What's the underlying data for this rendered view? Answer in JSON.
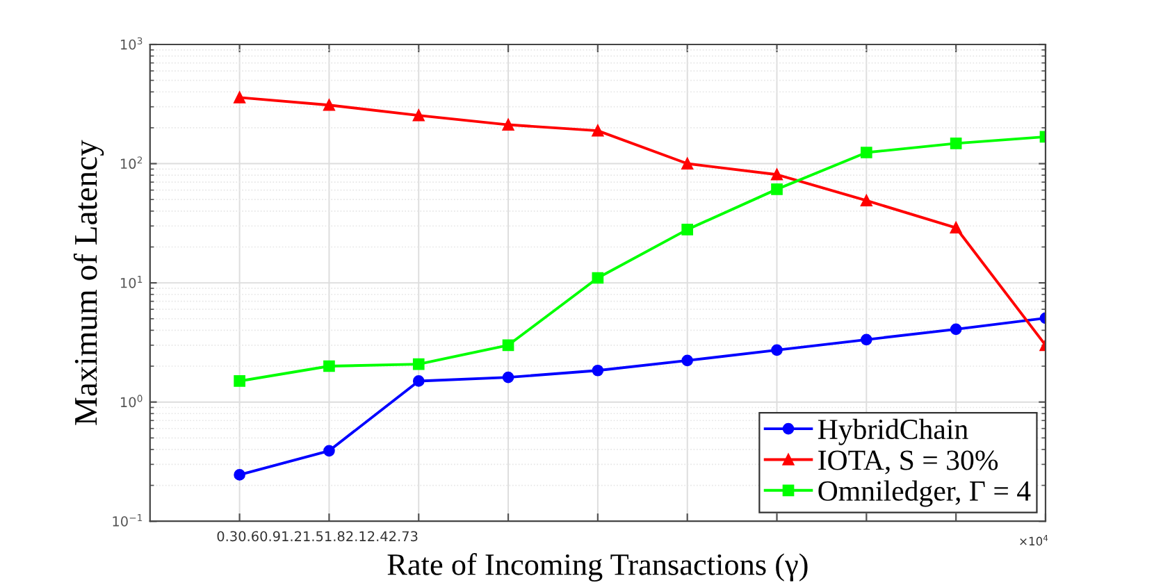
{
  "chart_data": {
    "type": "line",
    "xlabel": "Rate of Incoming Transactions (γ)",
    "ylabel": "Maximum of Latency",
    "categories": [
      null,
      null,
      null,
      null,
      null,
      null,
      null,
      null,
      null,
      null
    ],
    "ylim": [
      0.1,
      1000
    ],
    "log": "y",
    "yticks": [
      {
        "value": 0.1,
        "label": "10$^{−1}$"
      },
      {
        "value": 1,
        "label": "10$^{0}$"
      },
      {
        "value": 10,
        "label": "10$^{1}$"
      },
      {
        "value": 100,
        "label": "10$^{2}$"
      },
      {
        "value": 1000,
        "label": "10$^{3}$"
      }
    ],
    "series": [
      {
        "name": "HybridChain",
        "color": "#0000ff",
        "marker": "circle",
        "values": [
          0.245,
          0.39,
          1.5,
          1.61,
          1.84,
          2.23,
          2.73,
          3.34,
          4.08,
          5.06
        ]
      },
      {
        "name": "IOTA, S = 30%",
        "color": "#ff0000",
        "marker": "triangle",
        "values": [
          359,
          310,
          254,
          212,
          189,
          100,
          81,
          49,
          29,
          3.0
        ]
      },
      {
        "name": "Omniledger, Γ = 4",
        "color": "#00ff00",
        "marker": "square",
        "values": [
          1.5,
          2.0,
          2.08,
          3.0,
          11,
          28,
          61,
          124,
          148,
          168
        ]
      }
    ],
    "annotations": [
      "0.30.60.91.21.51.82.12.42.73",
      "×10$^{4}$"
    ],
    "grid": true,
    "legend": "bottom right",
    "line_style": "solid"
  }
}
